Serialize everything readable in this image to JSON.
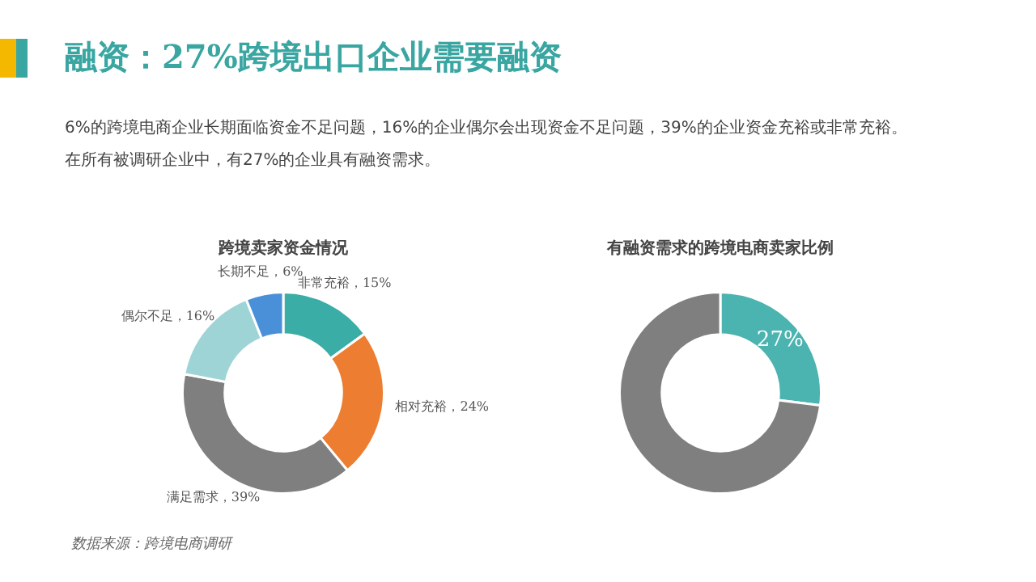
{
  "chart_data": [
    {
      "type": "other",
      "title": "融资：27%跨境出口企业需要融资",
      "subtitle": "6%的跨境电商企业长期面临资金不足问题，16%的企业偶尔会出现资金不足问题，39%的企业资金充裕或非常充裕。在所有被调研企业中，有27%的企业具有融资需求。",
      "annotations": [
        "数据来源：跨境电商调研"
      ]
    },
    {
      "type": "donut",
      "title": "跨境卖家资金情况",
      "categories": [
        "非常充裕",
        "相对充裕",
        "满足需求",
        "偶尔不足",
        "长期不足"
      ],
      "values": [
        15,
        24,
        39,
        16,
        6
      ],
      "colors": [
        "#3aada7",
        "#ed7d31",
        "#7f7f7f",
        "#9fd4d6",
        "#4a90d9"
      ],
      "value_labels": [
        "15%",
        "24%",
        "39%",
        "16%",
        "6%"
      ],
      "legend": false
    },
    {
      "type": "donut",
      "title": "有融资需求的跨境电商卖家比例",
      "categories": [
        null,
        null
      ],
      "values": [
        27,
        73
      ],
      "colors": [
        "#4bb3b0",
        "#7f7f7f"
      ],
      "value_labels": [
        "27%",
        null
      ],
      "legend": false
    }
  ]
}
